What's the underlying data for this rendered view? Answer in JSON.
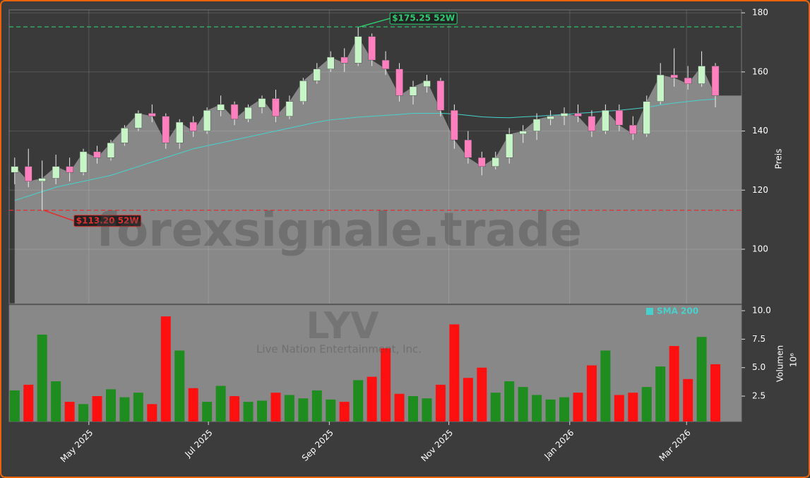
{
  "chart_data": {
    "type": "candlestick",
    "categories": [
      null,
      null,
      null,
      null,
      null,
      null,
      null,
      null,
      null,
      null,
      null,
      null,
      null,
      null,
      null,
      null,
      null,
      null,
      null,
      null,
      null,
      null,
      null,
      null,
      null,
      null,
      null,
      null,
      null,
      null,
      null,
      null,
      null,
      null,
      null,
      null,
      null,
      null,
      null,
      null,
      null,
      null,
      null,
      null,
      null,
      null,
      null,
      null,
      null,
      null,
      null,
      null
    ],
    "open": [
      126,
      128,
      123,
      124,
      128,
      126,
      133,
      131,
      136,
      141,
      146,
      145,
      136,
      143,
      140,
      147,
      149,
      144,
      148,
      151,
      145,
      150,
      157,
      161,
      165,
      163,
      172,
      164,
      161,
      152,
      155,
      157,
      147,
      137,
      131,
      128,
      131,
      139,
      140,
      144,
      145,
      146,
      145,
      140,
      147,
      142,
      139,
      150,
      159,
      158,
      156,
      162
    ],
    "high": [
      131,
      134,
      130,
      132,
      131,
      134,
      135,
      137,
      142,
      147,
      149,
      146,
      144,
      145,
      148,
      152,
      150,
      149,
      152,
      154,
      152,
      158,
      163,
      167,
      168,
      175.25,
      173,
      167,
      163,
      157,
      159,
      158,
      149,
      140,
      133,
      133,
      141,
      142,
      146,
      147,
      148,
      149,
      147,
      149,
      149,
      145,
      152,
      163,
      168,
      162,
      167,
      163
    ],
    "low": [
      122,
      121,
      113.2,
      122,
      123,
      125,
      129,
      130,
      135,
      140,
      143,
      134,
      134,
      138,
      139,
      145,
      142,
      143,
      146,
      143,
      144,
      149,
      156,
      160,
      160,
      162,
      162,
      159,
      150,
      149,
      153,
      145,
      134,
      129,
      125,
      127,
      129,
      136,
      137,
      142,
      142,
      143,
      138,
      139,
      140,
      137,
      138,
      149,
      155,
      154,
      155,
      148
    ],
    "close": [
      128,
      123,
      124,
      128,
      126,
      133,
      131,
      136,
      141,
      146,
      145,
      136,
      143,
      140,
      147,
      149,
      144,
      148,
      151,
      145,
      150,
      157,
      161,
      165,
      163,
      172,
      164,
      161,
      152,
      155,
      157,
      147,
      137,
      131,
      128,
      131,
      139,
      140,
      144,
      145,
      146,
      145,
      140,
      147,
      142,
      139,
      150,
      159,
      158,
      156,
      162,
      152
    ],
    "up_color": "#c8f5c8",
    "down_color": "#ff7fbf",
    "area_color": "#888888",
    "sma": {
      "name": "SMA 200",
      "color": "#48d1cc",
      "values": [
        116.5,
        118,
        119.5,
        121,
        122,
        123,
        124,
        125,
        126.5,
        128,
        129.5,
        131,
        132.5,
        134,
        135,
        136,
        137,
        138,
        139,
        140,
        141,
        142,
        143,
        143.8,
        144.2,
        144.7,
        145,
        145.3,
        145.6,
        146,
        146,
        146,
        145.8,
        145.3,
        144.8,
        144.6,
        144.5,
        144.8,
        145,
        145.3,
        145.6,
        146,
        146.3,
        146.7,
        147,
        147.5,
        148,
        148.8,
        149.5,
        150,
        150.5,
        150.8
      ]
    },
    "hlines": [
      {
        "value": 175.25,
        "label": "$175.25 52W",
        "color": "#2ecc71"
      },
      {
        "value": 113.2,
        "label": "$113.20 52W",
        "color": "#e03030"
      }
    ],
    "ylim": [
      81.6,
      181
    ],
    "yticks": [
      100,
      120,
      140,
      160,
      180
    ],
    "ylabel": "Preis",
    "grid": true,
    "xlim": [
      -0.4,
      52.9
    ],
    "xticks": [
      {
        "value": 5.4,
        "label": "May 2025"
      },
      {
        "value": 14.1,
        "label": "Jul 2025"
      },
      {
        "value": 22.9,
        "label": "Sep 2025"
      },
      {
        "value": 31.6,
        "label": "Nov 2025"
      },
      {
        "value": 40.4,
        "label": "Jan 2026"
      },
      {
        "value": 48.9,
        "label": "Mar 2026"
      }
    ],
    "volume": {
      "values": [
        3.0,
        3.5,
        7.9,
        3.8,
        2.0,
        1.8,
        2.5,
        3.1,
        2.4,
        2.8,
        1.8,
        9.5,
        6.5,
        3.2,
        2.0,
        3.4,
        2.5,
        2.0,
        2.1,
        2.8,
        2.6,
        2.3,
        3.0,
        2.2,
        2.0,
        3.9,
        4.2,
        6.7,
        2.7,
        2.5,
        2.3,
        3.5,
        8.8,
        4.1,
        5.0,
        2.8,
        3.8,
        3.3,
        2.6,
        2.2,
        2.4,
        2.8,
        5.2,
        6.5,
        2.6,
        2.8,
        3.3,
        5.1,
        6.9,
        4.0,
        7.7,
        5.3
      ],
      "up_color": "#1e8c1e",
      "down_color": "#ff1010",
      "ylim": [
        0.27,
        10.5
      ],
      "yticks": [
        {
          "value": 10,
          "label": "10.0"
        },
        7.5,
        {
          "value": 5,
          "label": "5.0"
        },
        2.5
      ],
      "ylabel": "Volumen",
      "unit": "10⁶"
    },
    "watermarks": [
      "forexsignale.trade",
      "LYV",
      "Live Nation Entertainment, Inc."
    ]
  }
}
